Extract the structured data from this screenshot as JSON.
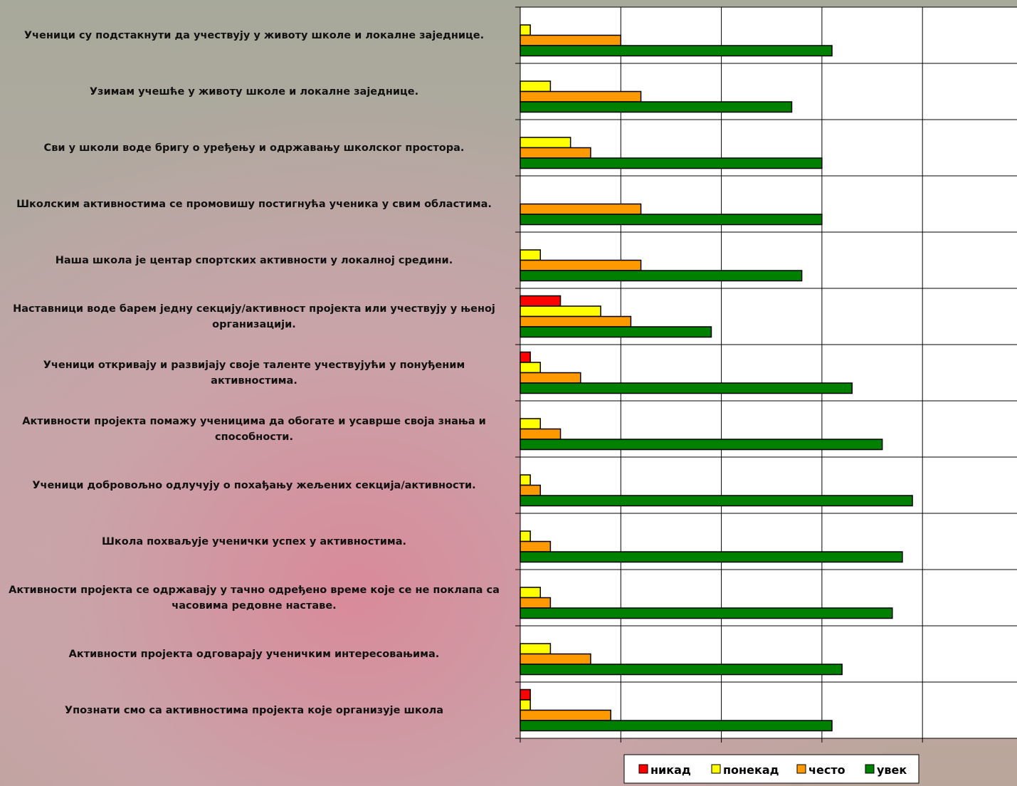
{
  "chart_data": {
    "type": "hbar",
    "categories": [
      "Ученици су подстакнути да учествују у животу школе и локалне заједнице.",
      "Узимам учешће у животу школе и локалне заједнице.",
      "Сви у школи воде бригу о уређењу и одржавању школског простора.",
      "Школским активностима се промовишу постигнућа ученика у свим областима.",
      "Наша школа је центар спортских активности у локалној средини.",
      "Наставници воде барем једну секцију/активност пројекта или учествују у њеној организацији.",
      "Ученици откривају и развијају своје таленте учествујући у понуђеним активностима.",
      "Активности пројекта помажу ученицима да обогате и усаврше своја знања и способности.",
      "Ученици добровољно одлучују о похађању жељених секција/активности.",
      "Школа похваљује ученички успех у  активностима.",
      "Активности пројекта  се одржавају у тачно одређено време које се не поклапа са часовима редовне наставе.",
      "Активности пројекта одговарају ученичким интересовањима.",
      "Упознати смо са активностима пројекта које организује школа"
    ],
    "series": [
      {
        "name": "никад",
        "color": "#ff0000",
        "values": [
          0,
          0,
          0,
          0,
          0,
          4,
          1,
          0,
          0,
          0,
          0,
          0,
          1
        ]
      },
      {
        "name": "понекад",
        "color": "#ffff00",
        "values": [
          1,
          3,
          5,
          0,
          2,
          8,
          2,
          2,
          1,
          1,
          2,
          3,
          1
        ]
      },
      {
        "name": "често",
        "color": "#ff9900",
        "values": [
          10,
          12,
          7,
          12,
          12,
          11,
          6,
          4,
          2,
          3,
          3,
          7,
          9
        ]
      },
      {
        "name": "увек",
        "color": "#008000",
        "values": [
          31,
          27,
          30,
          30,
          28,
          19,
          33,
          36,
          39,
          38,
          37,
          32,
          31
        ]
      }
    ],
    "xlim": [
      0,
      49.4
    ],
    "xticks": [
      0,
      10,
      20,
      30,
      40
    ],
    "grid": true
  }
}
